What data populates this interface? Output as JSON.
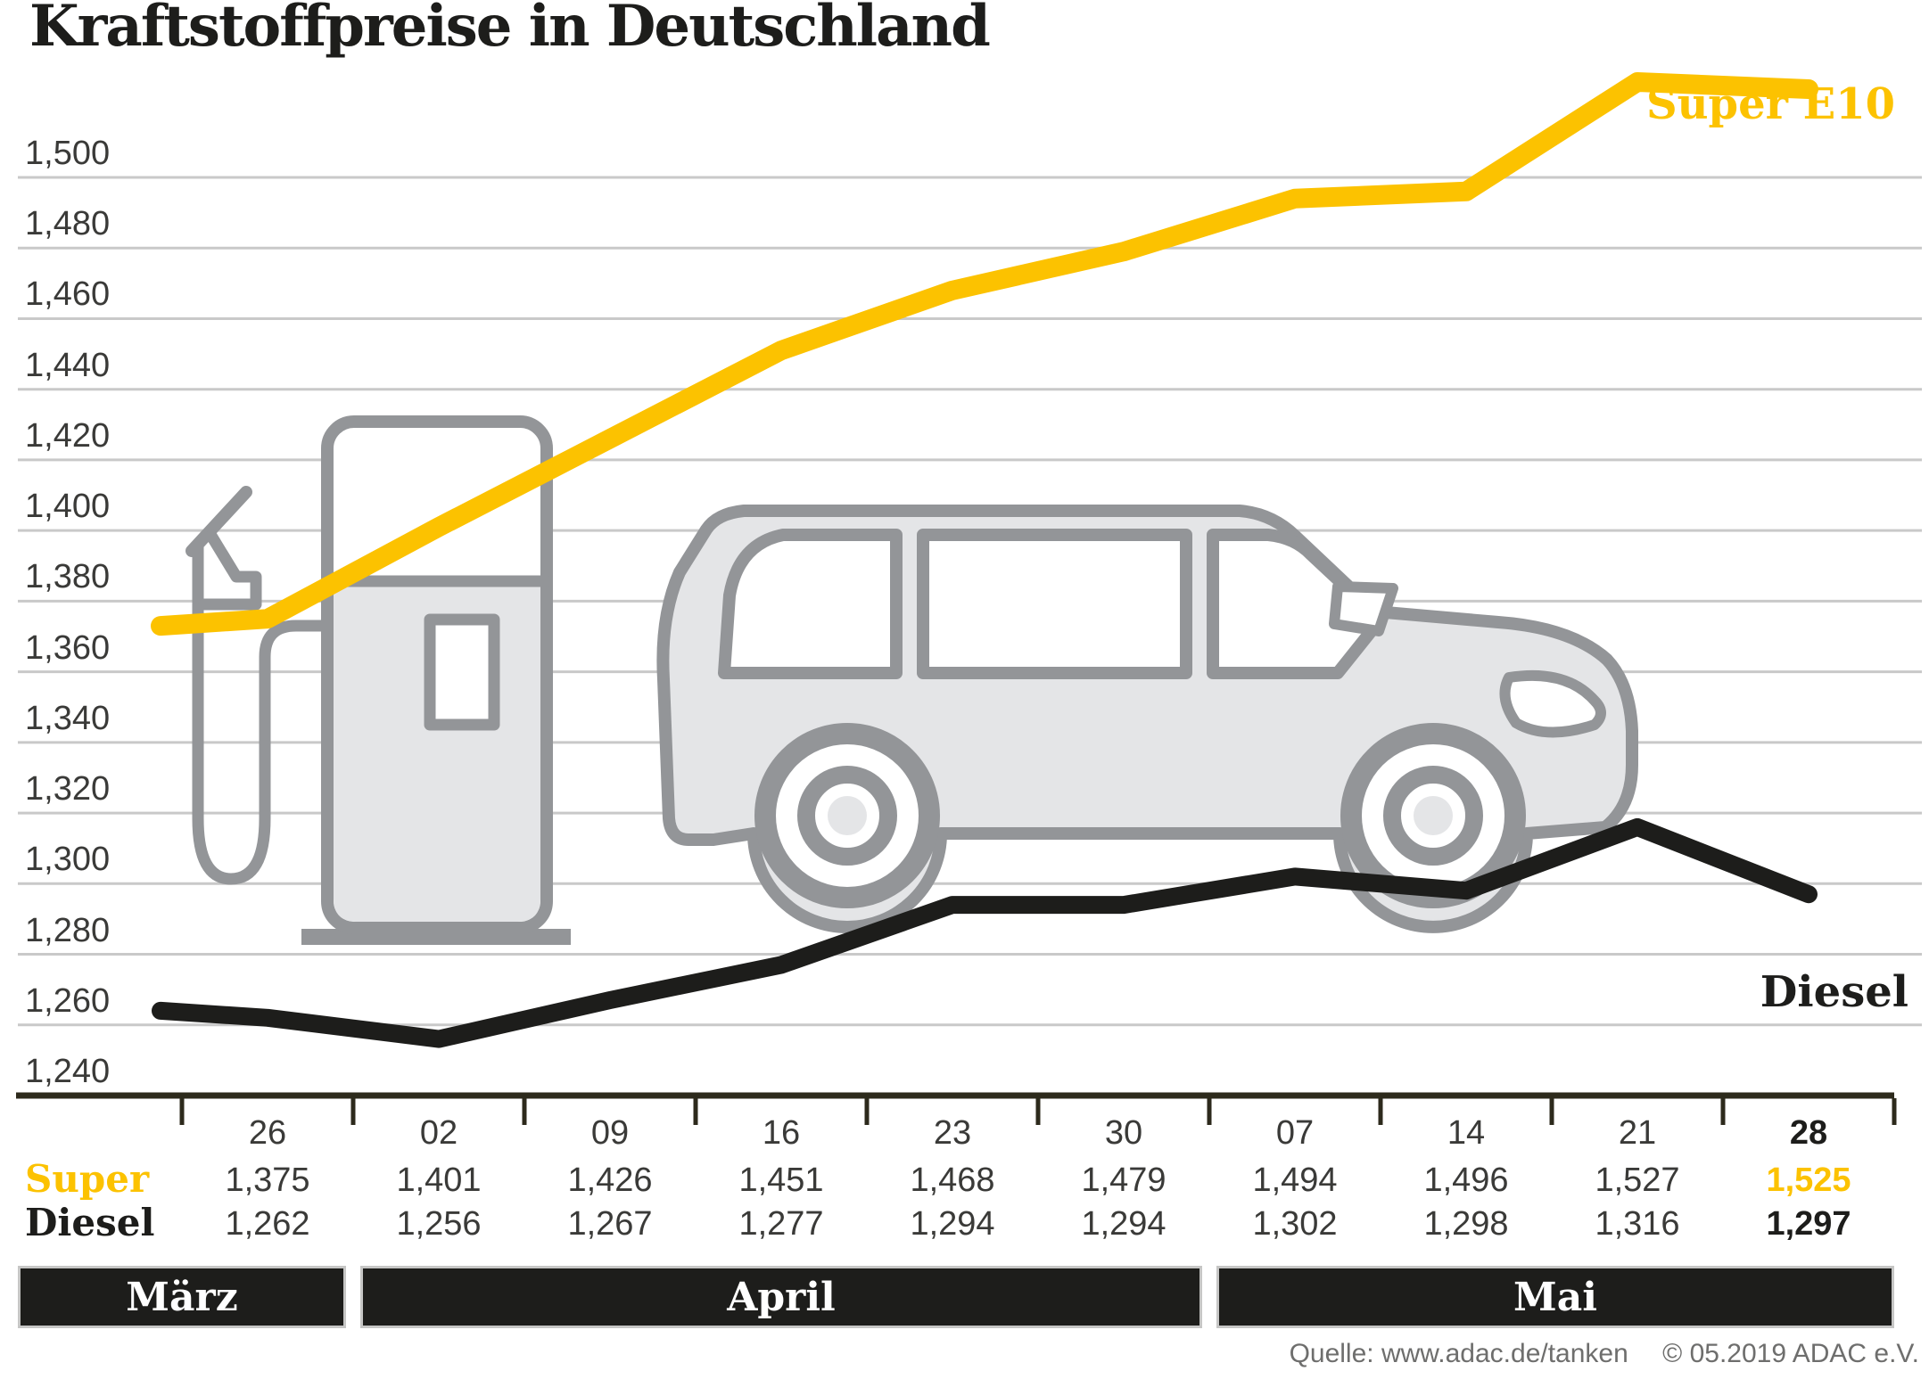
{
  "title": "Kraftstoffpreise in Deutschland",
  "source": {
    "label": "Quelle: www.adac.de/tanken",
    "copyright": "© 05.2019  ADAC e.V."
  },
  "colors": {
    "super_yellow": "#fcc200",
    "diesel_black": "#1d1d1b",
    "table_text": "#3a3a38",
    "gridline": "#c9c9c9",
    "axis": "#2d2a1c",
    "band_background": "#1d1d1b",
    "band_text": "#ffffff",
    "band_border": "#c6c6c5",
    "illustration_outline": "#939598",
    "illustration_fill": "#e4e5e7",
    "source_text": "#6e6e6d"
  },
  "chart_data": {
    "type": "line",
    "title": "Kraftstoffpreise in Deutschland",
    "ylabel": "",
    "xlabel": "",
    "ylim": [
      1240,
      1500
    ],
    "y_tick_step": 20,
    "y_tick_labels": [
      "1,240",
      "1,260",
      "1,280",
      "1,300",
      "1,320",
      "1,340",
      "1,360",
      "1,380",
      "1,400",
      "1,420",
      "1,440",
      "1,460",
      "1,480",
      "1,500"
    ],
    "grid": true,
    "x_tick_labels": [
      "26",
      "02",
      "09",
      "16",
      "23",
      "30",
      "07",
      "14",
      "21",
      "28"
    ],
    "emphasized_column": 9,
    "months": [
      {
        "label": "März",
        "cols": [
          0,
          0
        ]
      },
      {
        "label": "April",
        "cols": [
          1,
          5
        ]
      },
      {
        "label": "Mai",
        "cols": [
          6,
          9
        ]
      }
    ],
    "series": [
      {
        "name": "Super E10",
        "table_label": "Super",
        "color": "#fcc200",
        "lead_in_value": 1373,
        "values": [
          1375,
          1401,
          1426,
          1451,
          1468,
          1479,
          1494,
          1496,
          1527,
          1525
        ],
        "display_values": [
          "1,375",
          "1,401",
          "1,426",
          "1,451",
          "1,468",
          "1,479",
          "1,494",
          "1,496",
          "1,527",
          "1,525"
        ]
      },
      {
        "name": "Diesel",
        "table_label": "Diesel",
        "color": "#1d1d1b",
        "lead_in_value": 1264,
        "values": [
          1262,
          1256,
          1267,
          1277,
          1294,
          1294,
          1302,
          1298,
          1316,
          1297
        ],
        "display_values": [
          "1,262",
          "1,256",
          "1,267",
          "1,277",
          "1,294",
          "1,294",
          "1,302",
          "1,298",
          "1,316",
          "1,297"
        ]
      }
    ],
    "legend_position": "labels-inline-at-line-ends"
  }
}
